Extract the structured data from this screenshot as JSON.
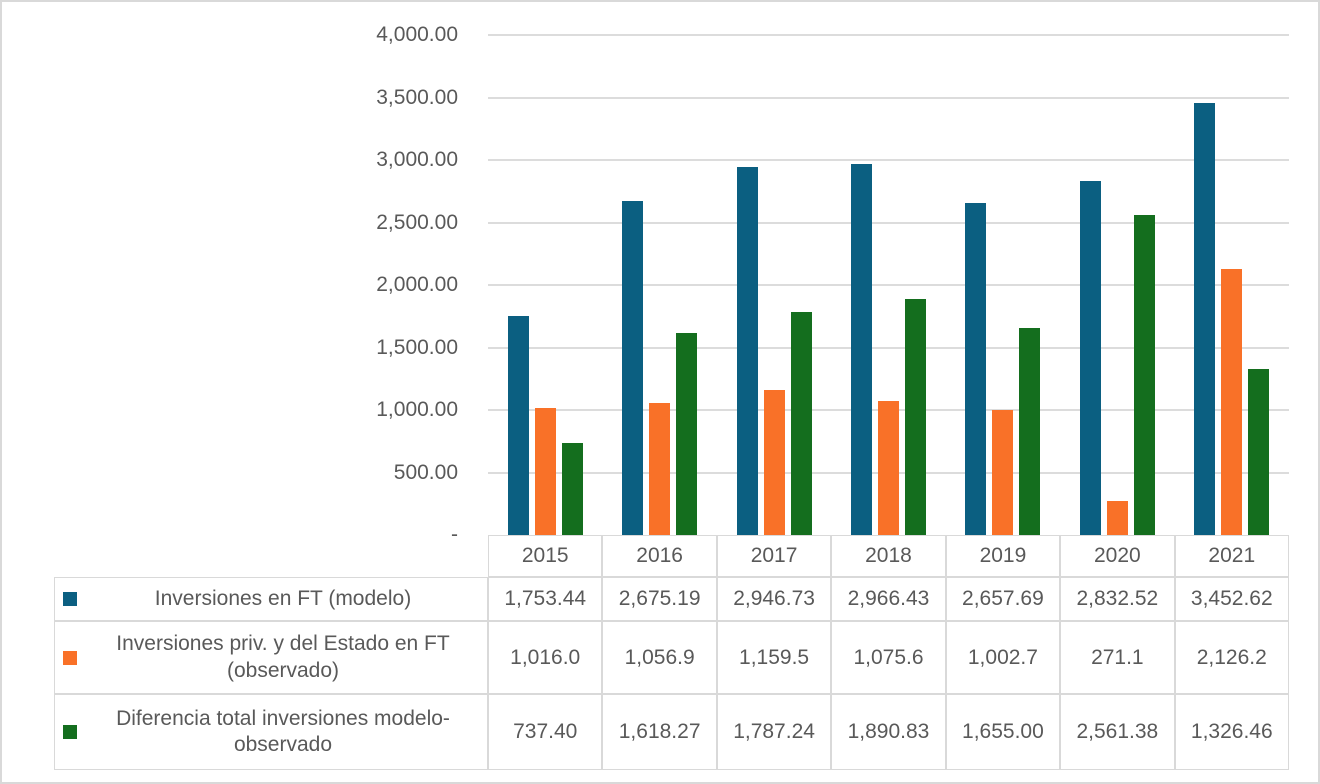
{
  "canvas": {
    "background": "#FFFFFF",
    "border_color": "#D9D9D9"
  },
  "chart_data": {
    "type": "bar",
    "title": "",
    "xlabel": "",
    "ylabel": "",
    "categories": [
      "2015",
      "2016",
      "2017",
      "2018",
      "2019",
      "2020",
      "2021"
    ],
    "series": [
      {
        "name": "Inversiones en FT (modelo)",
        "color": "#0B5F81",
        "values": [
          1753.44,
          2675.19,
          2946.73,
          2966.43,
          2657.69,
          2832.52,
          3452.62
        ],
        "display": [
          "1,753.44",
          "2,675.19",
          "2,946.73",
          "2,966.43",
          "2,657.69",
          "2,832.52",
          "3,452.62"
        ]
      },
      {
        "name": "Inversiones priv. y del Estado en FT (observado)",
        "color": "#F97128",
        "values": [
          1016.0,
          1056.9,
          1159.5,
          1075.6,
          1002.7,
          271.1,
          2126.2
        ],
        "display": [
          "1,016.0",
          "1,056.9",
          "1,159.5",
          "1,075.6",
          "1,002.7",
          "271.1",
          "2,126.2"
        ]
      },
      {
        "name": "Diferencia total inversiones modelo-observado",
        "color": "#146E1E",
        "values": [
          737.4,
          1618.27,
          1787.24,
          1890.83,
          1655.0,
          2561.38,
          1326.46
        ],
        "display": [
          "737.40",
          "1,618.27",
          "1,787.24",
          "1,890.83",
          "1,655.00",
          "2,561.38",
          "1,326.46"
        ]
      }
    ],
    "yaxis": {
      "min": 0,
      "max": 4000,
      "step": 500,
      "tick_labels": [
        "4,000.00",
        "3,500.00",
        "3,000.00",
        "2,500.00",
        "2,000.00",
        "1,500.00",
        "1,000.00",
        "500.00",
        "-"
      ]
    },
    "grid": "horizontal",
    "gridline_color": "#DCDCDC",
    "table_border_color": "#D9D9D9",
    "text_color": "#595959",
    "legend_position": "data-table-left"
  }
}
